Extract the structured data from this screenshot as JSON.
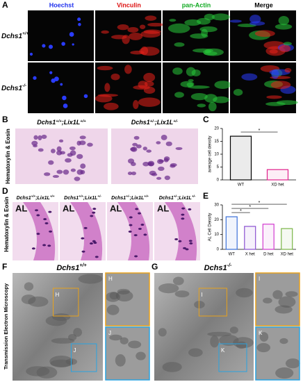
{
  "panels": {
    "A": {
      "label": "A",
      "columns": [
        "Hoechst",
        "Vinculin",
        "pan-Actin",
        "Merge"
      ],
      "column_colors": [
        "#2233ee",
        "#dd1111",
        "#11aa22",
        "#000000"
      ],
      "rows": [
        [
          "Dchs1",
          "+/+"
        ],
        [
          "Dchs1",
          "-/-"
        ]
      ]
    },
    "B": {
      "label": "B",
      "side_label": "Hematoxylin & Eosin",
      "columns": [
        [
          "Dchs1",
          "+/+",
          ";Lix1L",
          "+/+"
        ],
        [
          "Dchs1",
          "+/-",
          ";Lix1L",
          "+/-"
        ]
      ]
    },
    "D": {
      "label": "D",
      "side_label": "Hematoxylin & Eosin",
      "image_label": "AL",
      "columns": [
        [
          "Dchs1",
          "+/+",
          ";Lix1L",
          "+/+"
        ],
        [
          "Dchs1",
          "+/+",
          ";Lix1L",
          "+/-"
        ],
        [
          "Dchs1",
          "+/-",
          ";Lix1L",
          "+/+"
        ],
        [
          "Dchs1",
          "+/-",
          ";Lix1L",
          "+/-"
        ]
      ]
    },
    "F": {
      "label": "F",
      "title": [
        "Dchs1",
        "+/+"
      ],
      "insets": [
        "H",
        "J"
      ]
    },
    "G": {
      "label": "G",
      "title": [
        "Dchs1",
        "-/-"
      ],
      "insets": [
        "I",
        "K"
      ]
    },
    "tem_side_label": "Transmission Electron Microscopy"
  },
  "chart_data": [
    {
      "type": "bar",
      "label": "C",
      "ylabel": "average cell density",
      "categories": [
        "WT",
        "XD het"
      ],
      "values": [
        17,
        4
      ],
      "colors": [
        "#000000",
        "#e0208c"
      ],
      "ylim": [
        0,
        20
      ],
      "yticks": [
        0,
        5,
        10,
        15,
        20
      ],
      "significance": [
        "*"
      ]
    },
    {
      "type": "bar",
      "label": "E",
      "ylabel": "AL Cell Density",
      "categories": [
        "WT",
        "X het",
        "D het",
        "XD het"
      ],
      "values": [
        22,
        15.5,
        17,
        14
      ],
      "colors": [
        "#3a6fd8",
        "#8a4fd0",
        "#d23ad0",
        "#7ab648"
      ],
      "ylim": [
        0,
        30
      ],
      "yticks": [
        0,
        10,
        20,
        30
      ],
      "significance": [
        "*",
        "*",
        "*"
      ]
    }
  ]
}
